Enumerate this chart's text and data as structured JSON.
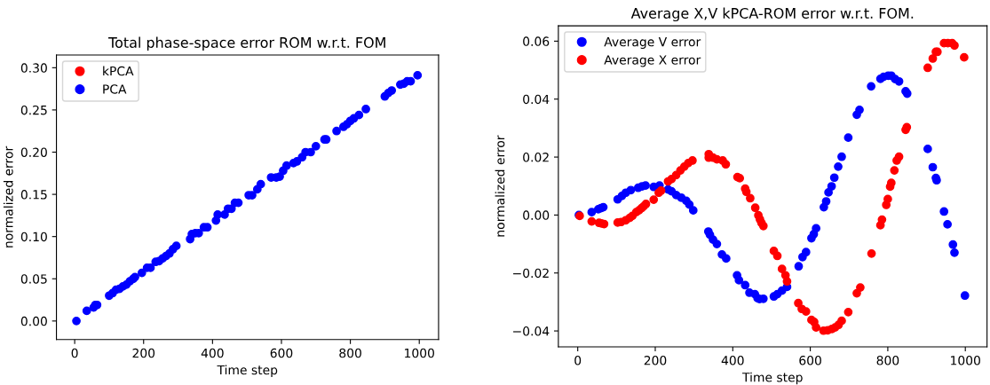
{
  "chart_data": [
    {
      "type": "scatter",
      "title": "Total phase-space error ROM w.r.t. FOM",
      "xlabel": "Time step",
      "ylabel": "normalized error",
      "x": [
        5,
        35,
        55,
        60,
        65,
        100,
        110,
        120,
        130,
        140,
        150,
        160,
        170,
        175,
        195,
        210,
        220,
        235,
        245,
        255,
        265,
        275,
        285,
        295,
        335,
        340,
        350,
        360,
        375,
        385,
        410,
        415,
        435,
        445,
        455,
        465,
        475,
        505,
        515,
        530,
        540,
        570,
        585,
        595,
        605,
        615,
        635,
        645,
        660,
        670,
        685,
        700,
        725,
        730,
        760,
        780,
        790,
        800,
        810,
        825,
        845,
        900,
        910,
        920,
        945,
        955,
        965,
        975,
        995
      ],
      "series": [
        {
          "name": "kPCA",
          "color": "#ff0000",
          "values": [
            null,
            null,
            null,
            null,
            null,
            null,
            null,
            null,
            null,
            null,
            null,
            null,
            null,
            null,
            null,
            null,
            null,
            null,
            null,
            null,
            null,
            null,
            null,
            null,
            null,
            null,
            null,
            null,
            null,
            null,
            null,
            null,
            null,
            null,
            null,
            null,
            null,
            null,
            null,
            null,
            null,
            null,
            null,
            null,
            null,
            null,
            null,
            null,
            null,
            null,
            null,
            null,
            null,
            null,
            null,
            null,
            null,
            null,
            null,
            null,
            null,
            null,
            null,
            null,
            null,
            null,
            null,
            null,
            null
          ]
        },
        {
          "name": "PCA",
          "color": "#0000ff",
          "values": [
            0,
            0.012,
            0.016,
            0.019,
            0.019,
            0.03,
            0.033,
            0.037,
            0.038,
            0.041,
            0.043,
            0.047,
            0.05,
            0.052,
            0.057,
            0.063,
            0.063,
            0.07,
            0.071,
            0.074,
            0.077,
            0.08,
            0.085,
            0.089,
            0.097,
            0.103,
            0.104,
            0.104,
            0.111,
            0.111,
            0.119,
            0.126,
            0.126,
            0.133,
            0.133,
            0.14,
            0.14,
            0.149,
            0.149,
            0.156,
            0.162,
            0.17,
            0.17,
            0.171,
            0.178,
            0.184,
            0.187,
            0.189,
            0.194,
            0.2,
            0.2,
            0.207,
            0.215,
            0.215,
            0.225,
            0.23,
            0.233,
            0.237,
            0.24,
            0.244,
            0.251,
            0.266,
            0.27,
            0.273,
            0.28,
            0.281,
            0.284,
            0.284,
            0.291
          ]
        }
      ],
      "xlim": [
        -53,
        1056
      ],
      "xticks": [
        0,
        200,
        400,
        600,
        800,
        1000
      ],
      "ylim": [
        -0.022,
        0.315
      ],
      "yticks": [
        {
          "value": 0,
          "label": "0.00"
        },
        {
          "value": 0.05,
          "label": "0.05"
        },
        {
          "value": 0.1,
          "label": "0.10"
        },
        {
          "value": 0.15,
          "label": "0.15"
        },
        {
          "value": 0.2,
          "label": "0.20"
        },
        {
          "value": 0.25,
          "label": "0.25"
        },
        {
          "value": 0.3,
          "label": "0.30"
        }
      ],
      "grid": false,
      "legend": "top left",
      "marker": "circle"
    },
    {
      "type": "scatter",
      "title": "Average X,V kPCA-ROM error w.r.t. FOM.",
      "xlabel": "Time step",
      "ylabel": "normalized error",
      "series": [
        {
          "name": "Average V error",
          "color": "#0000ff",
          "x": [
            3,
            36,
            53,
            60,
            66,
            103,
            114,
            124,
            137,
            156,
            166,
            175,
            196,
            211,
            233,
            242,
            254,
            267,
            280,
            288,
            298,
            337,
            341,
            349,
            359,
            372,
            383,
            411,
            416,
            432,
            443,
            457,
            464,
            469,
            479,
            506,
            515,
            527,
            540,
            570,
            580,
            589,
            603,
            609,
            615,
            635,
            641,
            647,
            655,
            662,
            672,
            681,
            698,
            720,
            727,
            757,
            781,
            789,
            801,
            809,
            819,
            829,
            846,
            850,
            903,
            916,
            924,
            926,
            945,
            954,
            968,
            972,
            999
          ],
          "values": [
            0.0,
            0.001,
            0.002,
            0.0024,
            0.0027,
            0.0054,
            0.0066,
            0.0077,
            0.0086,
            0.0094,
            0.0099,
            0.0102,
            0.0097,
            0.0102,
            0.0088,
            0.0082,
            0.0069,
            0.006,
            0.0049,
            0.0036,
            0.0016,
            -0.0057,
            -0.0068,
            -0.0085,
            -0.01,
            -0.0136,
            -0.015,
            -0.0208,
            -0.0225,
            -0.0242,
            -0.0268,
            -0.0273,
            -0.0287,
            -0.029,
            -0.0289,
            -0.0281,
            -0.0273,
            -0.0261,
            -0.0248,
            -0.0177,
            -0.0145,
            -0.0128,
            -0.008,
            -0.0066,
            -0.0046,
            0.0027,
            0.0047,
            0.0078,
            0.0099,
            0.0129,
            0.0167,
            0.0201,
            0.0267,
            0.0346,
            0.0363,
            0.0444,
            0.047,
            0.0477,
            0.0481,
            0.0481,
            0.0469,
            0.0461,
            0.0427,
            0.0419,
            0.0228,
            0.0165,
            0.0128,
            0.012,
            0.0012,
            -0.0032,
            -0.0102,
            -0.013,
            -0.0278
          ]
        },
        {
          "name": "Average X error",
          "color": "#ff0000",
          "x": [
            5,
            36,
            55,
            61,
            68,
            103,
            112,
            124,
            134,
            141,
            151,
            158,
            165,
            170,
            176,
            196,
            209,
            215,
            233,
            242,
            254,
            265,
            275,
            285,
            296,
            338,
            338,
            349,
            359,
            374,
            382,
            412,
            418,
            432,
            435,
            445,
            458,
            466,
            470,
            474,
            479,
            506,
            515,
            527,
            536,
            540,
            569,
            578,
            589,
            603,
            610,
            615,
            634,
            645,
            656,
            664,
            673,
            681,
            698,
            720,
            729,
            758,
            781,
            785,
            796,
            800,
            806,
            809,
            817,
            823,
            829,
            846,
            849,
            903,
            916,
            924,
            928,
            945,
            955,
            966,
            972,
            997
          ],
          "values": [
            -0.0003,
            -0.0022,
            -0.0027,
            -0.0029,
            -0.0031,
            -0.0026,
            -0.0024,
            -0.0018,
            -0.001,
            -0.0003,
            0.001,
            0.0016,
            0.0024,
            0.003,
            0.0038,
            0.0053,
            0.0077,
            0.0084,
            0.0116,
            0.0124,
            0.0138,
            0.0154,
            0.0167,
            0.0179,
            0.0188,
            0.021,
            0.0198,
            0.0198,
            0.0192,
            0.0188,
            0.0175,
            0.0131,
            0.0127,
            0.0091,
            0.008,
            0.0058,
            0.0025,
            -0.0001,
            -0.0015,
            -0.0027,
            -0.0038,
            -0.0124,
            -0.0141,
            -0.0186,
            -0.0208,
            -0.0229,
            -0.0304,
            -0.0324,
            -0.0333,
            -0.0362,
            -0.0369,
            -0.0388,
            -0.0399,
            -0.0398,
            -0.0393,
            -0.0388,
            -0.0379,
            -0.0365,
            -0.0335,
            -0.027,
            -0.025,
            -0.0133,
            -0.0035,
            -0.0016,
            0.0035,
            0.0055,
            0.0098,
            0.0111,
            0.0154,
            0.0188,
            0.0201,
            0.0294,
            0.0303,
            0.0508,
            0.054,
            0.0563,
            0.0563,
            0.0593,
            0.0593,
            0.0593,
            0.0585,
            0.0544
          ]
        }
      ],
      "xlim": [
        -50,
        1056
      ],
      "xticks": [
        0,
        200,
        400,
        600,
        800,
        1000
      ],
      "ylim": [
        -0.0455,
        0.0653
      ],
      "yticks": [
        {
          "value": -0.04,
          "label": "−0.04"
        },
        {
          "value": -0.02,
          "label": "−0.02"
        },
        {
          "value": 0,
          "label": "0.00"
        },
        {
          "value": 0.02,
          "label": "0.02"
        },
        {
          "value": 0.04,
          "label": "0.04"
        },
        {
          "value": 0.06,
          "label": "0.06"
        }
      ],
      "grid": false,
      "legend": "top left",
      "marker": "circle"
    }
  ]
}
